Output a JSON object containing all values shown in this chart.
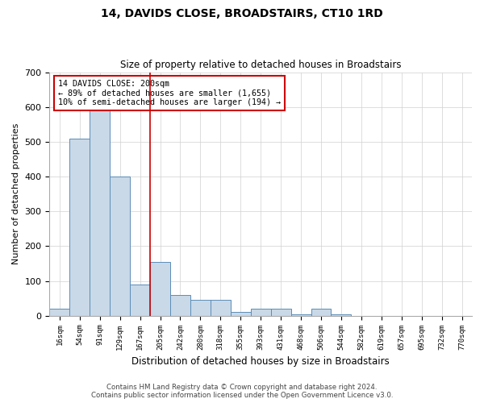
{
  "title": "14, DAVIDS CLOSE, BROADSTAIRS, CT10 1RD",
  "subtitle": "Size of property relative to detached houses in Broadstairs",
  "xlabel": "Distribution of detached houses by size in Broadstairs",
  "ylabel": "Number of detached properties",
  "footer_line1": "Contains HM Land Registry data © Crown copyright and database right 2024.",
  "footer_line2": "Contains public sector information licensed under the Open Government Licence v3.0.",
  "bin_labels": [
    "16sqm",
    "54sqm",
    "91sqm",
    "129sqm",
    "167sqm",
    "205sqm",
    "242sqm",
    "280sqm",
    "318sqm",
    "355sqm",
    "393sqm",
    "431sqm",
    "468sqm",
    "506sqm",
    "544sqm",
    "582sqm",
    "619sqm",
    "657sqm",
    "695sqm",
    "732sqm",
    "770sqm"
  ],
  "bar_values": [
    20,
    510,
    595,
    400,
    90,
    155,
    60,
    45,
    45,
    10,
    20,
    20,
    5,
    20,
    5,
    0,
    0,
    0,
    0,
    0,
    0
  ],
  "bar_color": "#c9d9e8",
  "bar_edge_color": "#5b8db8",
  "property_line_index": 5,
  "annotation_text_line1": "14 DAVIDS CLOSE: 200sqm",
  "annotation_text_line2": "← 89% of detached houses are smaller (1,655)",
  "annotation_text_line3": "10% of semi-detached houses are larger (194) →",
  "annotation_box_color": "#ffffff",
  "annotation_box_edge": "#cc0000",
  "red_line_color": "#cc0000",
  "grid_color": "#d0d0d0",
  "ylim": [
    0,
    700
  ],
  "yticks": [
    0,
    100,
    200,
    300,
    400,
    500,
    600,
    700
  ],
  "background_color": "#ffffff",
  "fig_width": 6.0,
  "fig_height": 5.0
}
